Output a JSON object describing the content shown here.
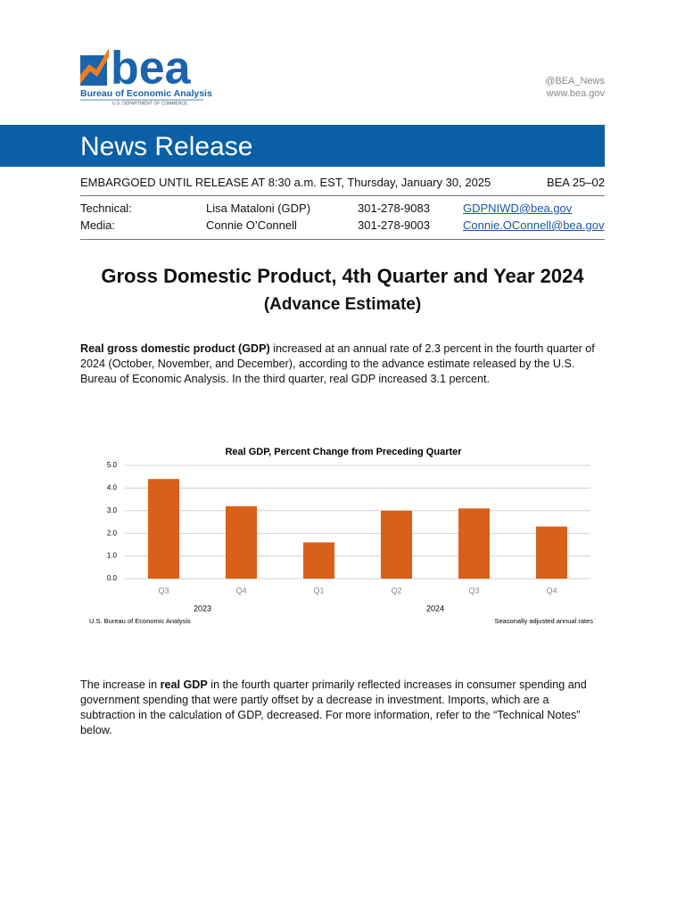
{
  "header": {
    "logo_word": "bea",
    "org": "Bureau of Economic Analysis",
    "dept": "U.S. DEPARTMENT OF COMMERCE",
    "twitter": "@BEA_News",
    "web": "www.bea.gov",
    "banner": "News Release"
  },
  "embargo": "EMBARGOED UNTIL RELEASE AT 8:30 a.m. EST, Thursday, January 30, 2025",
  "release_no": "BEA 25–02",
  "contacts": [
    {
      "role": "Technical:",
      "name": "Lisa Mataloni (GDP)",
      "phone": "301-278-9083",
      "email": "GDPNIWD@bea.gov"
    },
    {
      "role": "Media:",
      "name": "Connie O’Connell",
      "phone": "301-278-9003",
      "email": "Connie.OConnell@bea.gov"
    }
  ],
  "title": "Gross Domestic Product, 4th Quarter and Year 2024",
  "subtitle": "(Advance Estimate)",
  "paragraphs": [
    [
      "Real gross domestic product (GDP)",
      " increased at an annual rate of 2.3 percent in the fourth quarter of 2024 (October, November, and December), according to the advance estimate released by the U.S. Bureau of Economic Analysis. In the third quarter, real GDP increased 3.1 percent."
    ],
    [
      "The increase in ",
      "real GDP",
      " in the fourth quarter primarily reflected increases in consumer spending and government spending that were partly offset by a decrease in investment. Imports, which are a subtraction in the calculation of GDP, decreased. For more information, refer to the “Technical Notes” below."
    ]
  ],
  "chart_data": {
    "type": "bar",
    "title": "Real GDP, Percent Change from Preceding Quarter",
    "categories": [
      "Q3",
      "Q4",
      "Q1",
      "Q2",
      "Q3",
      "Q4"
    ],
    "years": [
      "2023",
      "2023",
      "2024",
      "2024",
      "2024",
      "2024"
    ],
    "values": [
      4.4,
      3.2,
      1.6,
      3.0,
      3.1,
      2.3
    ],
    "color": "#d9601a",
    "ylim": [
      0,
      5
    ],
    "yticks": [
      {
        "value": 0,
        "label": "0.0"
      },
      {
        "value": 1,
        "label": "1.0"
      },
      {
        "value": 2,
        "label": "2.0"
      },
      {
        "value": 3,
        "label": "3.0"
      },
      {
        "value": 4,
        "label": "4.0"
      },
      {
        "value": 5,
        "label": "5.0"
      }
    ],
    "grid": true,
    "source": "U.S. Bureau of Economic Analysis",
    "note": "Seasonally adjusted annual rates"
  }
}
